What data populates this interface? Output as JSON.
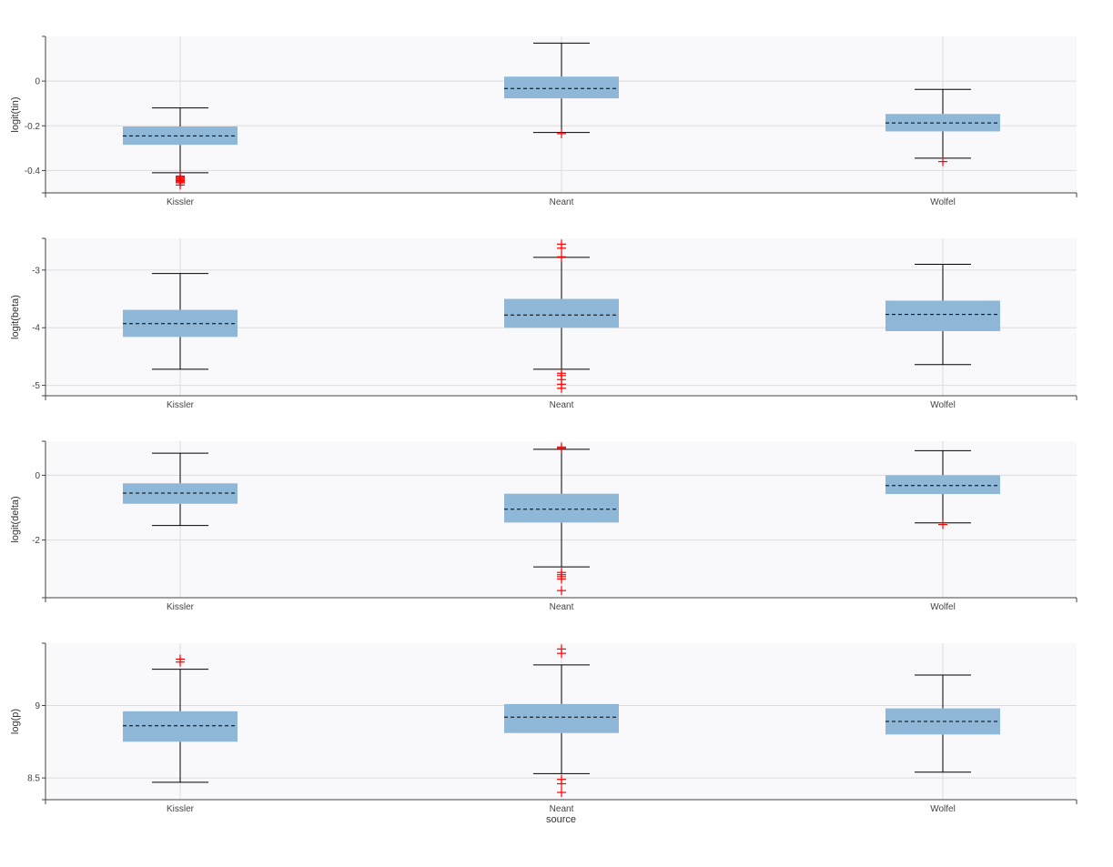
{
  "chart_data": [
    {
      "type": "box",
      "ylabel": "logit(tin)",
      "xlabel": "",
      "ylim": [
        -0.5,
        0.2
      ],
      "yticks": [
        -0.4,
        -0.2,
        0
      ],
      "ytick_labels": [
        "-0.4",
        "-0.2",
        "0"
      ],
      "grid": true,
      "categories": [
        "Kissler",
        "Neant",
        "Wolfel"
      ],
      "boxes": [
        {
          "category": "Kissler",
          "q1": -0.285,
          "median": -0.245,
          "q3": -0.203,
          "whisker_low": -0.41,
          "whisker_high": -0.12,
          "outliers": [
            -0.425,
            -0.43,
            -0.435,
            -0.44,
            -0.445,
            -0.45,
            -0.455,
            -0.465
          ]
        },
        {
          "category": "Neant",
          "q1": -0.077,
          "median": -0.033,
          "q3": 0.02,
          "whisker_low": -0.23,
          "whisker_high": 0.17,
          "outliers": [
            -0.235
          ]
        },
        {
          "category": "Wolfel",
          "q1": -0.225,
          "median": -0.187,
          "q3": -0.147,
          "whisker_low": -0.345,
          "whisker_high": -0.037,
          "outliers": [
            -0.36
          ]
        }
      ]
    },
    {
      "type": "box",
      "ylabel": "logit(beta)",
      "xlabel": "",
      "ylim": [
        -5.18,
        -2.45
      ],
      "yticks": [
        -5,
        -4,
        -3
      ],
      "ytick_labels": [
        "-5",
        "-4",
        "-3"
      ],
      "grid": true,
      "categories": [
        "Kissler",
        "Neant",
        "Wolfel"
      ],
      "boxes": [
        {
          "category": "Kissler",
          "q1": -4.16,
          "median": -3.93,
          "q3": -3.69,
          "whisker_low": -4.72,
          "whisker_high": -3.06,
          "outliers": []
        },
        {
          "category": "Neant",
          "q1": -4.0,
          "median": -3.78,
          "q3": -3.5,
          "whisker_low": -4.72,
          "whisker_high": -2.78,
          "outliers": [
            -2.55,
            -2.62,
            -2.77,
            -4.79,
            -4.83,
            -4.9,
            -4.98,
            -5.05
          ]
        },
        {
          "category": "Wolfel",
          "q1": -4.06,
          "median": -3.77,
          "q3": -3.53,
          "whisker_low": -4.64,
          "whisker_high": -2.9,
          "outliers": []
        }
      ]
    },
    {
      "type": "box",
      "ylabel": "logit(delta)",
      "xlabel": "",
      "ylim": [
        -3.78,
        1.05
      ],
      "yticks": [
        -2,
        0
      ],
      "ytick_labels": [
        "-2",
        "0"
      ],
      "grid": true,
      "categories": [
        "Kissler",
        "Neant",
        "Wolfel"
      ],
      "boxes": [
        {
          "category": "Kissler",
          "q1": -0.88,
          "median": -0.55,
          "q3": -0.25,
          "whisker_low": -1.55,
          "whisker_high": 0.68,
          "outliers": []
        },
        {
          "category": "Neant",
          "q1": -1.46,
          "median": -1.05,
          "q3": -0.57,
          "whisker_low": -2.83,
          "whisker_high": 0.8,
          "outliers": [
            0.83,
            0.87,
            -3.0,
            -3.07,
            -3.13,
            -3.2,
            -3.56
          ]
        },
        {
          "category": "Wolfel",
          "q1": -0.58,
          "median": -0.32,
          "q3": 0.0,
          "whisker_low": -1.47,
          "whisker_high": 0.76,
          "outliers": [
            -1.52
          ]
        }
      ]
    },
    {
      "type": "box",
      "ylabel": "log(p)",
      "xlabel": "source",
      "ylim": [
        8.35,
        9.43
      ],
      "yticks": [
        8.5,
        9
      ],
      "ytick_labels": [
        "8.5",
        "9"
      ],
      "grid": true,
      "categories": [
        "Kissler",
        "Neant",
        "Wolfel"
      ],
      "boxes": [
        {
          "category": "Kissler",
          "q1": 8.75,
          "median": 8.86,
          "q3": 8.96,
          "whisker_low": 8.47,
          "whisker_high": 9.25,
          "outliers": [
            9.3,
            9.32
          ]
        },
        {
          "category": "Neant",
          "q1": 8.81,
          "median": 8.92,
          "q3": 9.01,
          "whisker_low": 8.53,
          "whisker_high": 9.28,
          "outliers": [
            9.36,
            9.39,
            8.49,
            8.46,
            8.4
          ]
        },
        {
          "category": "Wolfel",
          "q1": 8.8,
          "median": 8.89,
          "q3": 8.98,
          "whisker_low": 8.54,
          "whisker_high": 9.21,
          "outliers": []
        }
      ]
    }
  ],
  "colors": {
    "box_fill": "#8fb8d8",
    "median_line": "#000000",
    "whisker": "#000000",
    "outlier": "#ff0000",
    "plot_background": "#f9f9fc",
    "grid": "#dddddd",
    "axis": "#444444"
  }
}
